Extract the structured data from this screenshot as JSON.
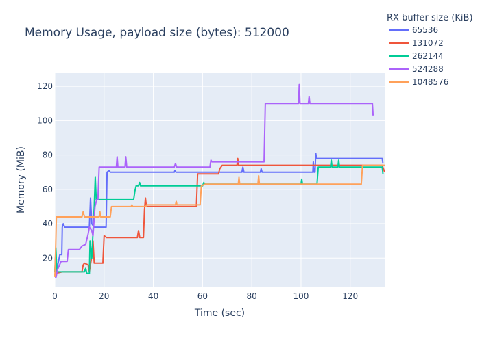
{
  "chart_data": {
    "type": "line",
    "title": "Memory Usage, payload size (bytes): 512000",
    "xlabel": "Time (sec)",
    "ylabel": "Memory (MiB)",
    "xlim": [
      0,
      134
    ],
    "ylim": [
      3,
      128
    ],
    "xticks": [
      0,
      20,
      40,
      60,
      80,
      100,
      120
    ],
    "yticks": [
      20,
      40,
      60,
      80,
      100,
      120
    ],
    "grid": true,
    "legend_title": "RX buffer size (KiB)",
    "legend_position": "top-right, outside plot",
    "plot_background": "#e5ecf6",
    "series": [
      {
        "name": "65536",
        "color": "#636efa",
        "points": [
          [
            0,
            10
          ],
          [
            0.6,
            12
          ],
          [
            2,
            22
          ],
          [
            2.8,
            22
          ],
          [
            3,
            38
          ],
          [
            3.4,
            40
          ],
          [
            4,
            38
          ],
          [
            14,
            38
          ],
          [
            14.5,
            55
          ],
          [
            15,
            40
          ],
          [
            16,
            38
          ],
          [
            20.8,
            38
          ],
          [
            21.2,
            70
          ],
          [
            22,
            71
          ],
          [
            22.5,
            70
          ],
          [
            48.5,
            70
          ],
          [
            48.8,
            71
          ],
          [
            49.2,
            70
          ],
          [
            76,
            70
          ],
          [
            76.4,
            73
          ],
          [
            76.8,
            70
          ],
          [
            83.5,
            70
          ],
          [
            83.8,
            72
          ],
          [
            84.2,
            70
          ],
          [
            104.8,
            70
          ],
          [
            105,
            76
          ],
          [
            105.3,
            70
          ],
          [
            105.7,
            70
          ],
          [
            106,
            81
          ],
          [
            106.3,
            78
          ],
          [
            133,
            78
          ],
          [
            133.3,
            75
          ]
        ]
      },
      {
        "name": "131072",
        "color": "#ef553b",
        "points": [
          [
            0,
            11
          ],
          [
            3,
            12
          ],
          [
            11,
            12
          ],
          [
            11.5,
            16
          ],
          [
            12,
            17
          ],
          [
            13.5,
            16
          ],
          [
            14,
            12
          ],
          [
            15,
            21
          ],
          [
            15.5,
            30
          ],
          [
            16,
            17
          ],
          [
            19.5,
            17
          ],
          [
            20,
            33
          ],
          [
            21,
            32
          ],
          [
            33.5,
            32
          ],
          [
            34,
            36
          ],
          [
            34.5,
            32
          ],
          [
            36,
            32
          ],
          [
            36.4,
            48
          ],
          [
            36.8,
            55
          ],
          [
            37.2,
            50
          ],
          [
            57.5,
            50
          ],
          [
            58,
            69
          ],
          [
            59,
            69
          ],
          [
            66.5,
            69
          ],
          [
            67,
            72
          ],
          [
            68,
            74
          ],
          [
            74,
            74
          ],
          [
            74.3,
            78
          ],
          [
            74.6,
            74
          ],
          [
            133,
            74
          ],
          [
            134,
            70
          ]
        ]
      },
      {
        "name": "262144",
        "color": "#00cc96",
        "points": [
          [
            0,
            12
          ],
          [
            0.4,
            26
          ],
          [
            0.8,
            12
          ],
          [
            12,
            12
          ],
          [
            12.5,
            14
          ],
          [
            13,
            11
          ],
          [
            14,
            11
          ],
          [
            14.3,
            30
          ],
          [
            15,
            20
          ],
          [
            16,
            50
          ],
          [
            16.4,
            67
          ],
          [
            16.8,
            54
          ],
          [
            32,
            54
          ],
          [
            32.5,
            59
          ],
          [
            33,
            62
          ],
          [
            34,
            62
          ],
          [
            34.4,
            64
          ],
          [
            34.8,
            62
          ],
          [
            60,
            62
          ],
          [
            60.5,
            64
          ],
          [
            61,
            63
          ],
          [
            100,
            63
          ],
          [
            100.3,
            66
          ],
          [
            100.6,
            63
          ],
          [
            106.5,
            63
          ],
          [
            107,
            73
          ],
          [
            112,
            73
          ],
          [
            112.3,
            77
          ],
          [
            112.6,
            73
          ],
          [
            115,
            73
          ],
          [
            115.3,
            77
          ],
          [
            115.6,
            73
          ],
          [
            133,
            73
          ],
          [
            133.3,
            69
          ]
        ]
      },
      {
        "name": "524288",
        "color": "#ab63fa",
        "points": [
          [
            0,
            9
          ],
          [
            0.5,
            9
          ],
          [
            1,
            13
          ],
          [
            2.5,
            18
          ],
          [
            5,
            18
          ],
          [
            5.5,
            25
          ],
          [
            10,
            25
          ],
          [
            11,
            27
          ],
          [
            12.5,
            28
          ],
          [
            13.5,
            34
          ],
          [
            14,
            38
          ],
          [
            15,
            36
          ],
          [
            15.5,
            33
          ],
          [
            16.3,
            50
          ],
          [
            17,
            54
          ],
          [
            17.5,
            54
          ],
          [
            18,
            73
          ],
          [
            25,
            73
          ],
          [
            25.3,
            79
          ],
          [
            25.6,
            73
          ],
          [
            28.5,
            73
          ],
          [
            28.8,
            79
          ],
          [
            29.2,
            73
          ],
          [
            48.5,
            73
          ],
          [
            49,
            75
          ],
          [
            49.5,
            73
          ],
          [
            63,
            73
          ],
          [
            63.4,
            77
          ],
          [
            63.8,
            76
          ],
          [
            85,
            76
          ],
          [
            85.5,
            110
          ],
          [
            99,
            110
          ],
          [
            99.3,
            121
          ],
          [
            99.6,
            110
          ],
          [
            103,
            110
          ],
          [
            103.3,
            114
          ],
          [
            103.6,
            110
          ],
          [
            129,
            110
          ],
          [
            129.3,
            103
          ]
        ]
      },
      {
        "name": "1048576",
        "color": "#ffa15a",
        "points": [
          [
            0,
            9
          ],
          [
            0.3,
            25
          ],
          [
            0.6,
            44
          ],
          [
            11,
            44
          ],
          [
            11.5,
            47
          ],
          [
            12,
            44
          ],
          [
            18,
            44
          ],
          [
            18.3,
            47
          ],
          [
            18.6,
            44
          ],
          [
            22.5,
            44
          ],
          [
            23,
            50
          ],
          [
            31,
            50
          ],
          [
            31.3,
            51
          ],
          [
            31.6,
            50
          ],
          [
            37,
            50
          ],
          [
            37.3,
            51
          ],
          [
            49,
            51
          ],
          [
            49.3,
            53
          ],
          [
            49.6,
            51
          ],
          [
            59,
            51
          ],
          [
            59.5,
            62
          ],
          [
            61,
            63
          ],
          [
            74.5,
            63
          ],
          [
            74.8,
            67
          ],
          [
            75.1,
            63
          ],
          [
            82.5,
            63
          ],
          [
            82.8,
            68
          ],
          [
            83.1,
            63
          ],
          [
            124.5,
            63
          ],
          [
            125,
            74
          ],
          [
            134,
            74
          ]
        ]
      }
    ]
  }
}
